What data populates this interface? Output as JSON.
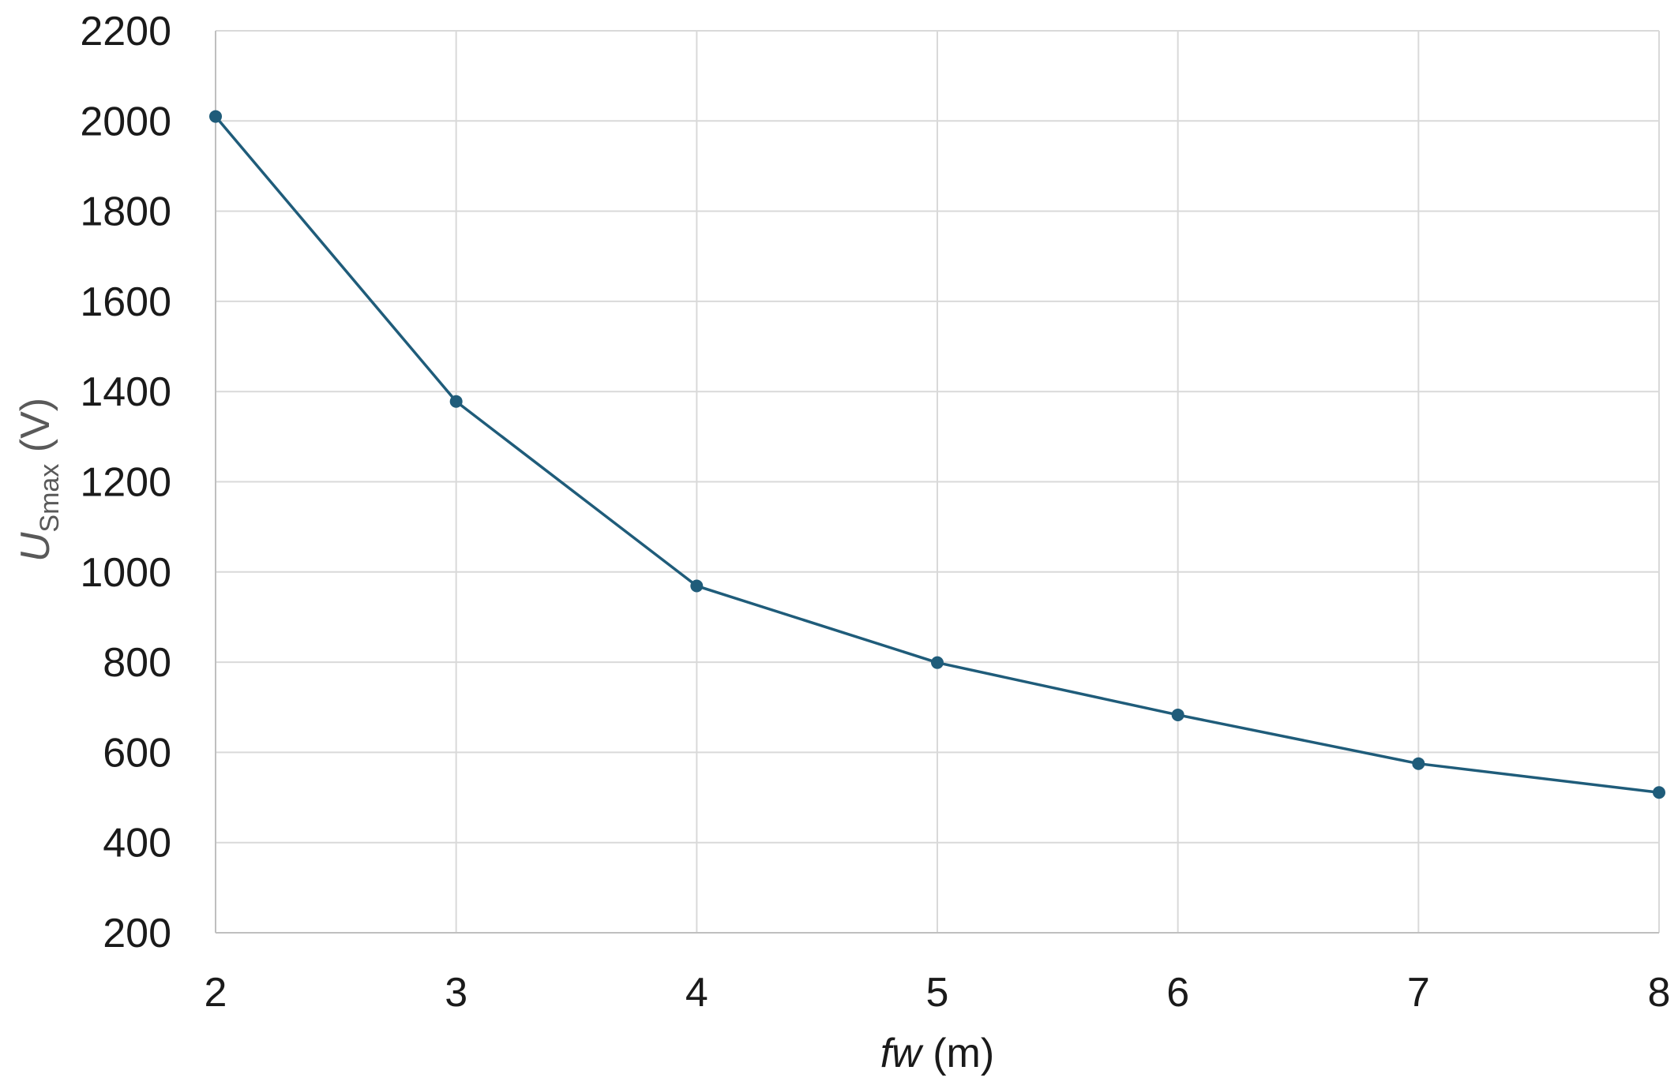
{
  "chart_data": {
    "type": "line",
    "x": [
      2,
      3,
      4,
      5,
      6,
      7,
      8
    ],
    "series": [
      {
        "values": [
          2010,
          1378,
          969,
          799,
          683,
          575,
          511
        ]
      }
    ],
    "xlim": [
      2,
      8
    ],
    "ylim": [
      200,
      2200
    ],
    "xticks": [
      "2",
      "3",
      "4",
      "5",
      "6",
      "7",
      "8"
    ],
    "yticks": [
      "200",
      "400",
      "600",
      "800",
      "1000",
      "1200",
      "1400",
      "1600",
      "1800",
      "2000",
      "2200"
    ],
    "xlabel": {
      "var": "fw",
      "unit": " (m)"
    },
    "ylabel": {
      "var": "U",
      "sub": "Smax",
      "unit": " (V)"
    },
    "grid": true,
    "legend": "none",
    "color": "#1f5c7a"
  }
}
